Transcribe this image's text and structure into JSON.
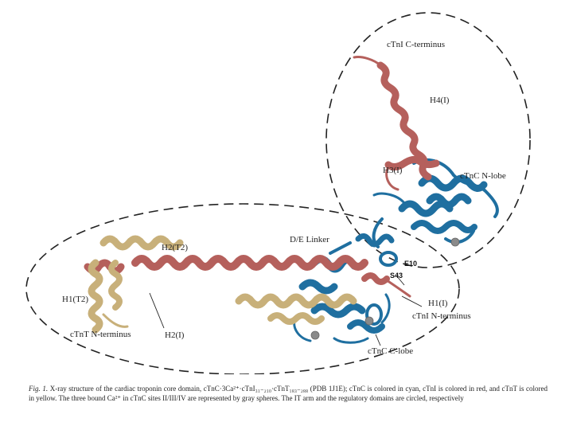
{
  "labels": {
    "ctni_c_terminus": "cTnI C-terminus",
    "h4_i": "H4(I)",
    "h3_i": "H3(I)",
    "ctnc_n_lobe": "cTnC N-lobe",
    "de_linker": "D/E Linker",
    "e10": "E10",
    "s43": "S43",
    "h2_t2": "H2(T2)",
    "h1_t2": "H1(T2)",
    "ctnt_n_terminus": "cTnT N-terminus",
    "h2_i": "H2(I)",
    "h1_i": "H1(I)",
    "ctni_n_terminus": "cTnI N-terminus",
    "ctnc_c_lobe": "cTnC C-lobe"
  },
  "caption": {
    "fig_label": "Fig. 1.",
    "text": "X-ray structure of the cardiac troponin core domain, cTnC·3Ca²⁺·cTnI₃₁₋₂₁₀·cTnT₁₈₃₋₂₈₈ (PDB 1J1E); cTnC is colored in cyan, cTnI is colored in red, and cTnT is colored in yellow. The three bound Ca²⁺ in cTnC sites II/III/IV are represented by gray spheres. The IT arm and the regulatory domains are circled, respectively"
  },
  "colors": {
    "ctnc": "#1f6fa0",
    "ctni": "#b5605c",
    "ctnt": "#c8b07a",
    "calcium": "#8a8a8a"
  }
}
